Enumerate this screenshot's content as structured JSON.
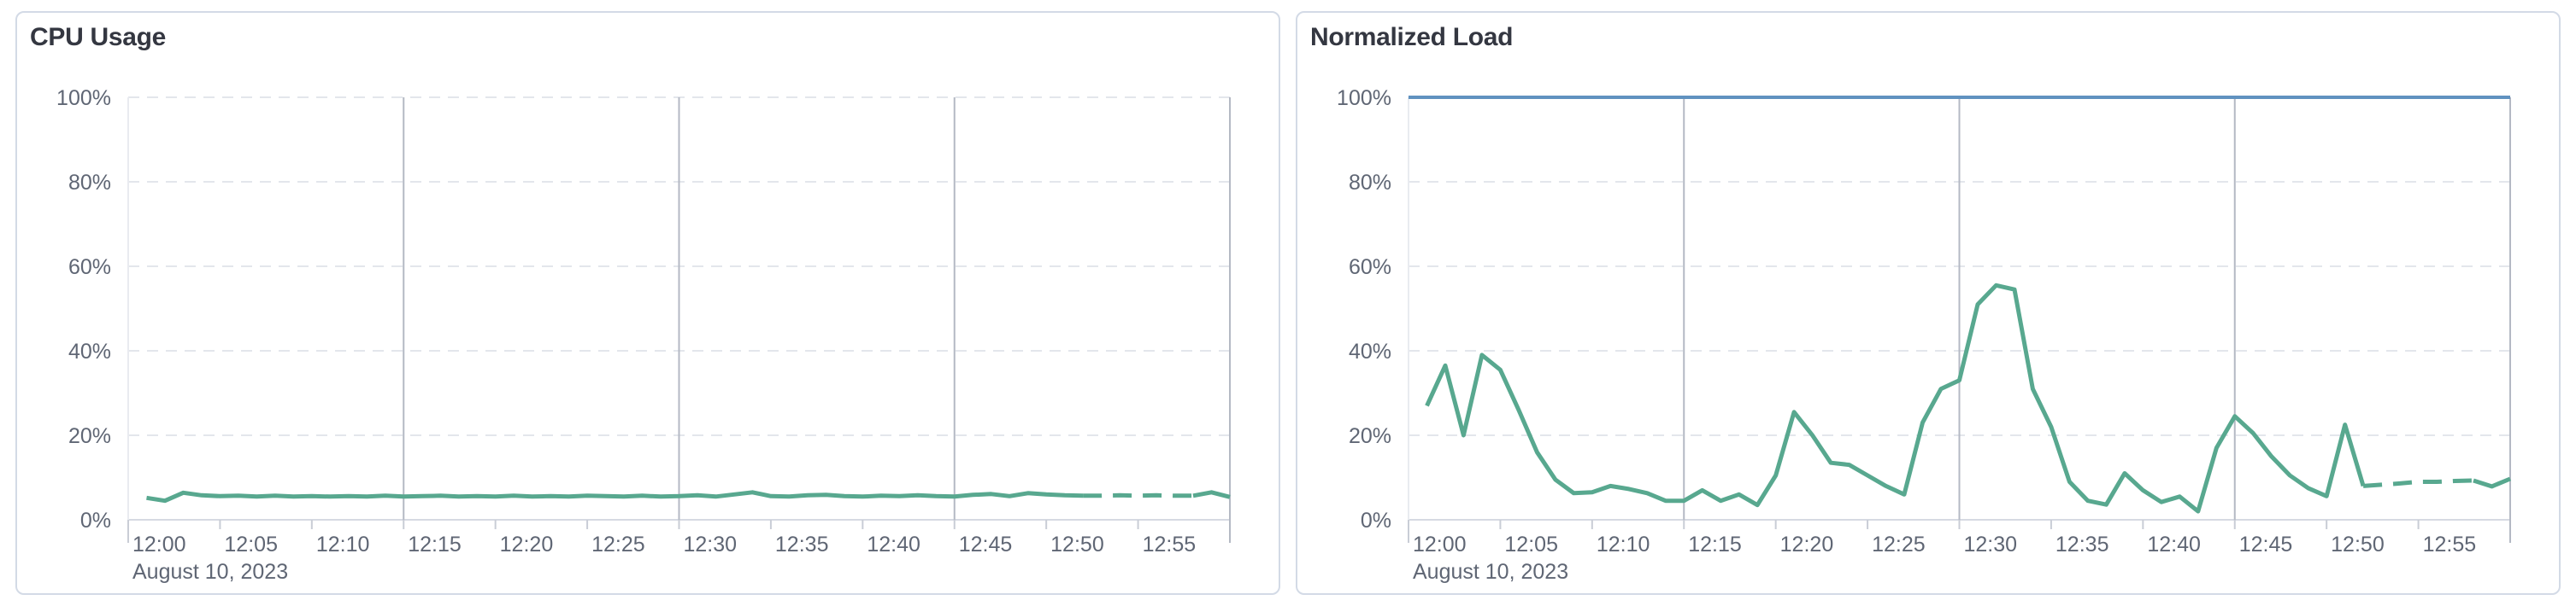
{
  "page": {
    "background": "#ffffff"
  },
  "style": {
    "card_border": "#d3dae6",
    "title_color": "#343741",
    "label_color": "#5f6674",
    "h_gridline": "#e3e6ec",
    "v_gridline": "#b4b9c4",
    "axis_line": "#d6dae2",
    "plot_left_border": "#e9ebf0",
    "tick_mark": "#c9cdd6",
    "series_green": "#58a88f",
    "series_blue": "#6092c0"
  },
  "chart_data": [
    {
      "type": "line",
      "title": "CPU Usage",
      "x_axis": {
        "tick_labels": [
          "12:00",
          "12:05",
          "12:10",
          "12:15",
          "12:20",
          "12:25",
          "12:30",
          "12:35",
          "12:40",
          "12:45",
          "12:50",
          "12:55"
        ],
        "date_label": "August 10, 2023",
        "domain_minutes": [
          0,
          60
        ],
        "tick_interval_minutes": 5,
        "gridlines_at_minutes": [
          15,
          30,
          45,
          60
        ]
      },
      "y_axis": {
        "tick_labels": [
          "0%",
          "20%",
          "40%",
          "60%",
          "80%",
          "100%"
        ],
        "range": [
          0,
          100
        ],
        "unit": "%"
      },
      "legend": "none",
      "grid": "dashed-horizontal, solid-vertical",
      "series": [
        {
          "name": "cpu-usage",
          "color": "#58a88f",
          "width": 5,
          "start_minute": 1,
          "dashed_from_minute": 52,
          "dashed_to_minute": 58,
          "values": [
            5.2,
            4.5,
            6.4,
            5.8,
            5.6,
            5.7,
            5.5,
            5.7,
            5.5,
            5.6,
            5.5,
            5.6,
            5.5,
            5.7,
            5.5,
            5.6,
            5.7,
            5.5,
            5.6,
            5.5,
            5.7,
            5.5,
            5.6,
            5.5,
            5.7,
            5.6,
            5.5,
            5.7,
            5.5,
            5.6,
            5.8,
            5.5,
            6.0,
            6.5,
            5.6,
            5.5,
            5.8,
            5.9,
            5.6,
            5.5,
            5.7,
            5.6,
            5.8,
            5.6,
            5.5,
            5.9,
            6.1,
            5.6,
            6.3,
            6.0,
            5.8,
            5.7,
            5.7,
            5.8,
            5.7,
            5.8,
            5.7,
            5.7,
            6.5,
            5.4
          ]
        }
      ]
    },
    {
      "type": "line",
      "title": "Normalized Load",
      "x_axis": {
        "tick_labels": [
          "12:00",
          "12:05",
          "12:10",
          "12:15",
          "12:20",
          "12:25",
          "12:30",
          "12:35",
          "12:40",
          "12:45",
          "12:50",
          "12:55"
        ],
        "date_label": "August 10, 2023",
        "domain_minutes": [
          0,
          60
        ],
        "tick_interval_minutes": 5,
        "gridlines_at_minutes": [
          15,
          30,
          45,
          60
        ]
      },
      "y_axis": {
        "tick_labels": [
          "0%",
          "20%",
          "40%",
          "60%",
          "80%",
          "100%"
        ],
        "range": [
          0,
          100
        ],
        "unit": "%"
      },
      "legend": "none",
      "grid": "dashed-horizontal, solid-vertical",
      "series": [
        {
          "name": "normalized-load",
          "color": "#58a88f",
          "width": 5,
          "start_minute": 1,
          "dashed_from_minute": 52,
          "dashed_to_minute": 58,
          "values": [
            27,
            36.5,
            20,
            39,
            35.5,
            26,
            16,
            9.5,
            6.3,
            6.5,
            8,
            7.3,
            6.3,
            4.5,
            4.5,
            7,
            4.5,
            6,
            3.5,
            10.5,
            25.5,
            20,
            13.5,
            13,
            10.5,
            8,
            6,
            23,
            31,
            33,
            51,
            55.5,
            54.5,
            31,
            22,
            9,
            4.5,
            3.6,
            11,
            7,
            4.2,
            5.5,
            2,
            17,
            24.5,
            20.5,
            15,
            10.5,
            7.5,
            5.6,
            22.5,
            8,
            8.3,
            8.6,
            9,
            9,
            9.2,
            9.3,
            7.9,
            9.7
          ]
        },
        {
          "name": "load-limit-100",
          "color": "#6092c0",
          "width": 4,
          "constant_value": 100,
          "start_minute": 0,
          "end_minute": 60
        }
      ]
    }
  ]
}
